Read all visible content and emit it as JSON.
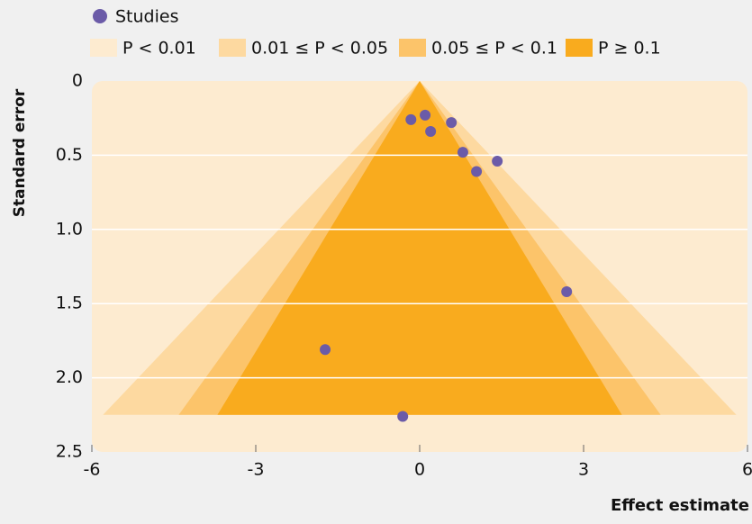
{
  "chart_data": {
    "type": "funnel",
    "x_label": "Effect estimate",
    "y_label": "Standard error",
    "points": {
      "name": "Studies",
      "color": "#6b5ba8",
      "x": [
        -0.16,
        0.1,
        0.2,
        0.58,
        0.79,
        1.04,
        1.42,
        2.69,
        -1.73,
        -0.31
      ],
      "y": [
        0.26,
        0.23,
        0.34,
        0.28,
        0.48,
        0.61,
        0.54,
        1.42,
        1.81,
        2.26
      ]
    },
    "background": {
      "name": "P < 0.01",
      "color": "#fdebd0"
    },
    "contours": [
      {
        "name": "0.01 ≤ P < 0.05",
        "color": "#fdd9a0",
        "z": 2.576
      },
      {
        "name": "0.05 ≤ P < 0.1",
        "color": "#fcc46a",
        "z": 1.96
      },
      {
        "name": "P ≥ 0.1",
        "color": "#f9ab1e",
        "z": 1.645
      }
    ],
    "funnel_se_max": 2.25,
    "xlim": [
      -6,
      6
    ],
    "xticks": [
      -6,
      -3,
      0,
      3,
      6
    ],
    "ylim": [
      0,
      2.5
    ],
    "y_inverted": true,
    "yticks": [
      0,
      0.5,
      {
        "value": 1,
        "label": "1.0"
      },
      1.5,
      {
        "value": 2,
        "label": "2.0"
      },
      2.5
    ],
    "grid": true
  }
}
